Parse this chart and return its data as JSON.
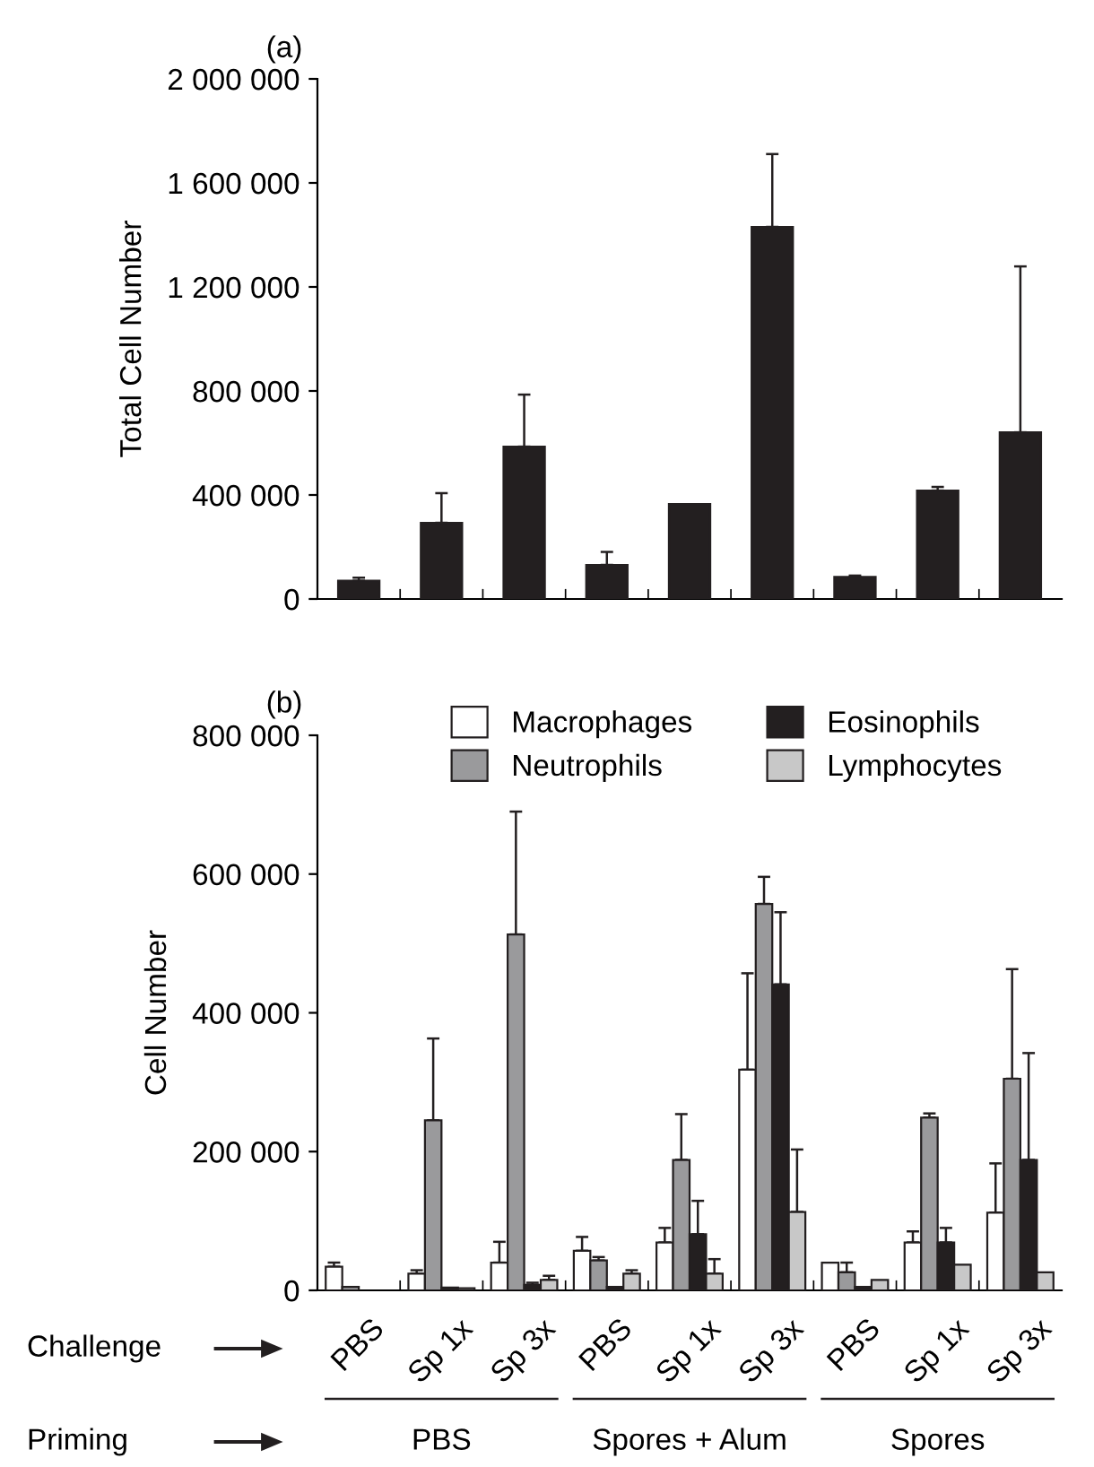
{
  "chart_data": [
    {
      "type": "bar",
      "ylabel": "Total Cell Number",
      "annotations": [
        "(a)"
      ],
      "categories": [
        null,
        null,
        null,
        null,
        null,
        null,
        null,
        null,
        null
      ],
      "series": [
        {
          "color": "#231f20",
          "values": [
            70000,
            293000,
            586000,
            131000,
            365000,
            1431000,
            85000,
            417000,
            641000
          ],
          "errors": [
            [
              70000,
              82000
            ],
            [
              293000,
              407000
            ],
            [
              586000,
              786000
            ],
            [
              131000,
              181000
            ],
            null,
            [
              1431000,
              1711000
            ],
            [
              85000,
              90000
            ],
            [
              417000,
              431000
            ],
            [
              641000,
              1279000
            ]
          ]
        }
      ],
      "ylim": [
        0,
        2000000
      ],
      "yticks": [
        0,
        {
          "value": 400000,
          "label": "400 000"
        },
        {
          "value": 800000,
          "label": "800 000"
        },
        {
          "value": 1200000,
          "label": "1 200 000"
        },
        {
          "value": 1600000,
          "label": "1 600 000"
        },
        {
          "value": 2000000,
          "label": "2 000 000"
        }
      ],
      "tick_labels": "y",
      "grid": false,
      "legend": false
    },
    {
      "type": "bar",
      "ylabel": "Cell Number",
      "annotations": [
        "(b)",
        "Challenge",
        "Priming",
        "PBS",
        "Spores + Alum",
        "Spores"
      ],
      "categories": [
        "PBS",
        "Sp 1x",
        "Sp 3x",
        "PBS",
        "Sp 1x",
        "Sp 3x",
        "PBS",
        "Sp 1x",
        "Sp 3x"
      ],
      "series": [
        {
          "name": "Macrophages",
          "color": "#ffffff",
          "values": [
            34000,
            24000,
            40000,
            57000,
            69000,
            318000,
            40000,
            69000,
            112000
          ],
          "errors": [
            [
              34000,
              40000
            ],
            [
              24000,
              29000
            ],
            [
              40000,
              70000
            ],
            [
              57000,
              77000
            ],
            [
              69000,
              90000
            ],
            [
              318000,
              457000
            ],
            null,
            [
              69000,
              85000
            ],
            [
              112000,
              183000
            ]
          ]
        },
        {
          "name": "Neutrophils",
          "color": "#9a9a9c",
          "values": [
            5000,
            245000,
            513000,
            43000,
            188000,
            557000,
            26000,
            249000,
            305000
          ],
          "errors": [
            null,
            [
              245000,
              363000
            ],
            [
              513000,
              690000
            ],
            [
              43000,
              48000
            ],
            [
              188000,
              254000
            ],
            [
              557000,
              596000
            ],
            [
              26000,
              40000
            ],
            [
              249000,
              255000
            ],
            [
              305000,
              463000
            ]
          ]
        },
        {
          "name": "Eosinophils",
          "color": "#231f20",
          "values": [
            null,
            4000,
            8000,
            5000,
            81000,
            441000,
            5000,
            69000,
            188000
          ],
          "errors": [
            null,
            null,
            [
              8000,
              11000
            ],
            null,
            [
              81000,
              129000
            ],
            [
              441000,
              545000
            ],
            null,
            [
              69000,
              90000
            ],
            [
              188000,
              342000
            ]
          ]
        },
        {
          "name": "Lymphocytes",
          "color": "#c8c8c8",
          "values": [
            null,
            3000,
            15000,
            24000,
            24000,
            113000,
            15000,
            37000,
            26000
          ],
          "errors": [
            null,
            null,
            [
              15000,
              21000
            ],
            [
              24000,
              29000
            ],
            [
              24000,
              45000
            ],
            [
              113000,
              203000
            ],
            null,
            null,
            null
          ]
        }
      ],
      "ylim": [
        0,
        800000
      ],
      "yticks": [
        0,
        {
          "value": 200000,
          "label": "200 000"
        },
        {
          "value": 400000,
          "label": "400 000"
        },
        {
          "value": 600000,
          "label": "600 000"
        },
        {
          "value": 800000,
          "label": "800 000"
        }
      ],
      "grid": false,
      "legend": "top"
    }
  ]
}
